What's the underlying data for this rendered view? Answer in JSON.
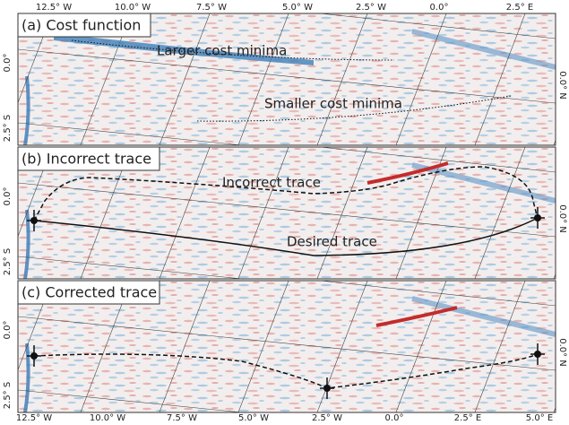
{
  "top_axis_labels": [
    "12.5° W",
    "10.0° W",
    "7.5° W",
    "5.0° W",
    "2.5° W",
    "0.0°",
    "2.5° E"
  ],
  "bottom_axis_labels": [
    "12.5° W",
    "10.0° W",
    "7.5° W",
    "5.0° W",
    "2.5° W",
    "0.0°",
    "2.5° E",
    "5.0° E"
  ],
  "panels": [
    {
      "title": "(a) Cost function",
      "left_labels": [
        "0.0°",
        "2.5° S"
      ],
      "right_label": "0.0° N",
      "annotations": [
        "Larger cost minima",
        "Smaller cost minima"
      ]
    },
    {
      "title": "(b) Incorrect trace",
      "left_labels": [
        "0.0°",
        "2.5° S"
      ],
      "right_label": "0.0° N",
      "annotations": [
        "Incorrect trace",
        "Desired trace"
      ]
    },
    {
      "title": "(c) Corrected trace",
      "left_labels": [
        "0.0°",
        "2.5° S"
      ],
      "right_label": "0.0° N",
      "annotations": []
    }
  ]
}
